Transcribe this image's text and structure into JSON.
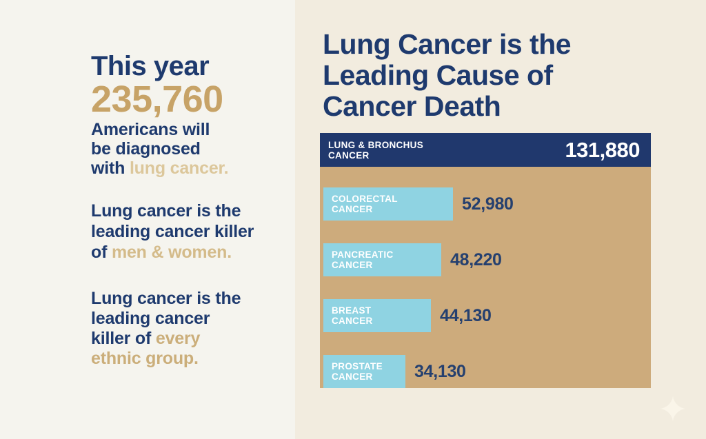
{
  "infographic": {
    "hero": {
      "heading": "This year",
      "big_number": "235,760",
      "body_prefix": "Americans will\nbe diagnosed\nwith ",
      "body_highlight": "lung cancer."
    },
    "fact_men_women": {
      "prefix": "Lung cancer is the\nleading cancer killer\nof ",
      "highlight": "men & women."
    },
    "fact_ethnic": {
      "prefix": "Lung cancer is the\nleading cancer\nkiller of ",
      "highlight": "every\nethnic group."
    },
    "chart_title_display": "Lung Cancer is the\nLeading Cause of\nCancer Death"
  },
  "chart_data": {
    "type": "bar",
    "orientation": "horizontal",
    "title": "Lung Cancer is the Leading Cause of Cancer Death",
    "categories": [
      "Lung & Bronchus Cancer",
      "Colorectal Cancer",
      "Pancreatic Cancer",
      "Breast Cancer",
      "Prostate Cancer"
    ],
    "values": [
      131880,
      52980,
      48220,
      44130,
      34130
    ],
    "value_labels": [
      "131,880",
      "52,980",
      "48,220",
      "44,130",
      "34,130"
    ],
    "bar_display_labels": [
      "LUNG & BRONCHUS\nCANCER",
      "COLORECTAL\nCANCER",
      "PANCREATIC\nCANCER",
      "BREAST\nCANCER",
      "PROSTATE\nCANCER"
    ],
    "xlim": [
      0,
      131880
    ],
    "legend": false,
    "grid": false,
    "bar_colors": [
      "#20386d",
      "#8fd3e2",
      "#8fd3e2",
      "#8fd3e2",
      "#8fd3e2"
    ],
    "value_text_colors": [
      "#ffffff",
      "#25406f",
      "#25406f",
      "#25406f",
      "#25406f"
    ]
  },
  "colors": {
    "navy": "#20386d",
    "navy_text": "#1e3a6e",
    "tan_panel": "#cdab7c",
    "light_blue_bar": "#8fd3e2",
    "gold_number": "#c7a367",
    "highlight_light": "#dcc79b",
    "highlight_mid": "#d4bb8a",
    "highlight_deep": "#cbae7a",
    "bg_left": "#f5f4ee",
    "bg_right": "#f2ecdf"
  },
  "icons": {
    "sparkle": "four-pointed-star"
  }
}
